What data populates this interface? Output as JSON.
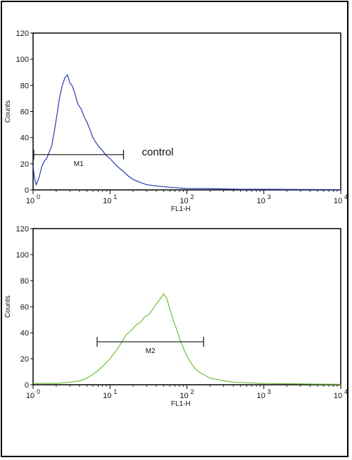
{
  "chart_data": [
    {
      "type": "line",
      "id": "top",
      "xlabel": "FL1-H",
      "ylabel": "Counts",
      "xscale": "log",
      "xlim": [
        1,
        10000
      ],
      "ylim": [
        0,
        120
      ],
      "x_ticks": [
        1,
        10,
        100,
        1000,
        10000
      ],
      "x_tick_bases": [
        "10",
        "10",
        "10",
        "10",
        "10"
      ],
      "x_tick_exps": [
        "0",
        "1",
        "2",
        "3",
        "4"
      ],
      "y_ticks": [
        "0",
        "20",
        "40",
        "60",
        "80",
        "100",
        "120"
      ],
      "series": [
        {
          "color": "#2a3cb0",
          "x": [
            1.0,
            1.05,
            1.1,
            1.2,
            1.3,
            1.4,
            1.5,
            1.6,
            1.75,
            1.9,
            2.05,
            2.2,
            2.4,
            2.6,
            2.8,
            3.0,
            3.2,
            3.5,
            3.8,
            4.2,
            4.6,
            5.0,
            5.5,
            6.0,
            6.6,
            7.2,
            8.0,
            9.0,
            10.0,
            11.5,
            13.0,
            15.0,
            17.0,
            20.0,
            24.0,
            30.0,
            40.0,
            60.0,
            100.0,
            200.0,
            500.0,
            1000.0,
            3000.0,
            10000.0
          ],
          "y": [
            18,
            8,
            4,
            10,
            18,
            22,
            24,
            28,
            34,
            46,
            58,
            70,
            80,
            86,
            88,
            82,
            80,
            74,
            66,
            62,
            56,
            52,
            46,
            40,
            36,
            33,
            30,
            26,
            24,
            20,
            17,
            14,
            11,
            8,
            6,
            4,
            3,
            2,
            1,
            1,
            0.5,
            0.5,
            0.3,
            0.2
          ]
        }
      ],
      "marker": {
        "label": "M1",
        "x_start": 1.02,
        "x_end": 15.0,
        "y": 27
      },
      "annotation": "control"
    },
    {
      "type": "line",
      "id": "bottom",
      "xlabel": "FL1-H",
      "ylabel": "Counts",
      "xscale": "log",
      "xlim": [
        1,
        10000
      ],
      "ylim": [
        0,
        120
      ],
      "x_ticks": [
        1,
        10,
        100,
        1000,
        10000
      ],
      "x_tick_bases": [
        "10",
        "10",
        "10",
        "10",
        "10"
      ],
      "x_tick_exps": [
        "0",
        "1",
        "2",
        "3",
        "4"
      ],
      "y_ticks": [
        "0",
        "20",
        "40",
        "60",
        "80",
        "100",
        "120"
      ],
      "series": [
        {
          "color": "#6cbf3a",
          "x": [
            1.0,
            2.0,
            3.0,
            4.0,
            5.0,
            6.0,
            7.0,
            8.0,
            9.0,
            10.0,
            12.0,
            14.0,
            16.0,
            19.0,
            22.0,
            25.0,
            28.0,
            32.0,
            36.0,
            40.0,
            45.0,
            50.0,
            55.0,
            60.0,
            66.0,
            72.0,
            80.0,
            90.0,
            100.0,
            115.0,
            130.0,
            150.0,
            175.0,
            200.0,
            250.0,
            300.0,
            400.0,
            600.0,
            1000.0,
            2000.0,
            5000.0,
            10000.0
          ],
          "y": [
            1,
            1,
            2,
            3,
            5,
            8,
            11,
            14,
            17,
            20,
            26,
            32,
            38,
            42,
            46,
            48,
            52,
            54,
            58,
            62,
            66,
            70,
            66,
            58,
            50,
            44,
            36,
            28,
            22,
            16,
            12,
            9,
            7,
            5,
            4,
            3,
            2,
            1.5,
            1,
            0.8,
            0.5,
            0.3
          ]
        }
      ],
      "marker": {
        "label": "M2",
        "x_start": 6.8,
        "x_end": 165.0,
        "y": 33
      }
    }
  ]
}
